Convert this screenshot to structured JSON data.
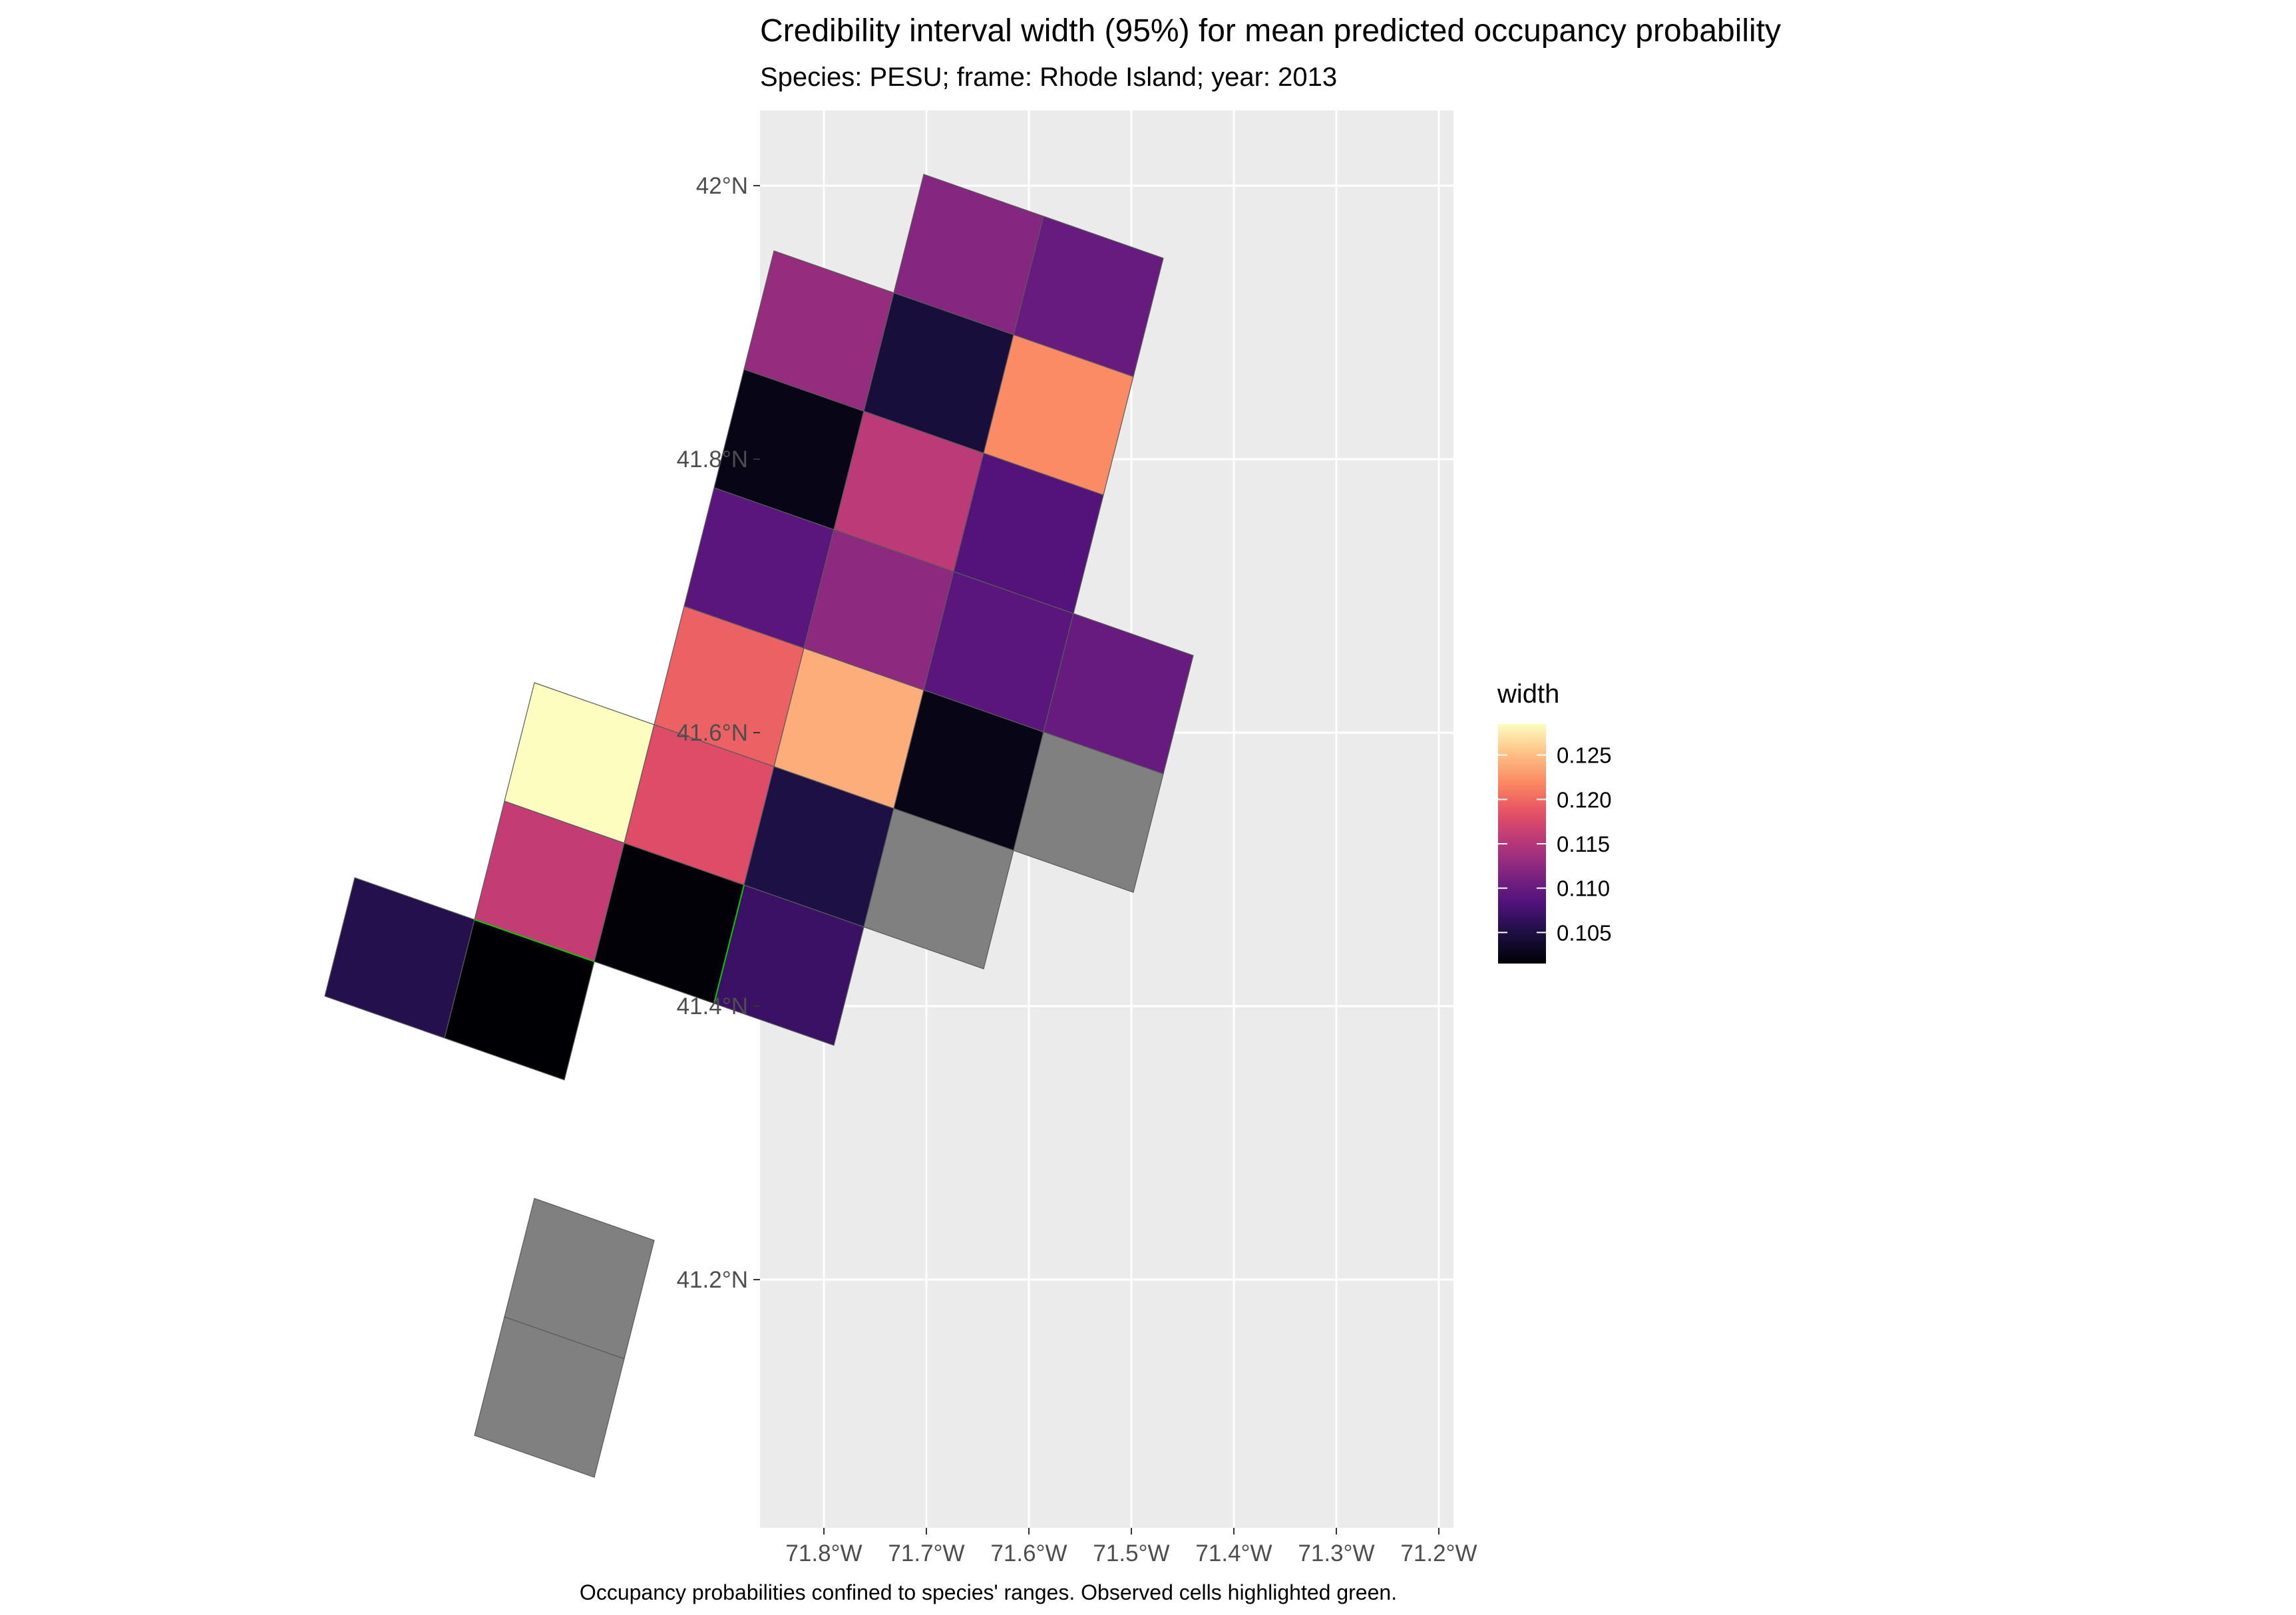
{
  "title": "Credibility interval width (95%) for mean predicted occupancy probability",
  "subtitle": "Species: PESU; frame: Rhode Island; year: 2013",
  "caption": "Occupancy probabilities confined to species' ranges. Observed cells highlighted green.",
  "axes": {
    "x_ticks": [
      "71.8°W",
      "71.7°W",
      "71.6°W",
      "71.5°W",
      "71.4°W",
      "71.3°W",
      "71.2°W"
    ],
    "y_ticks": [
      "42°N",
      "41.8°N",
      "41.6°N",
      "41.4°N",
      "41.2°N"
    ]
  },
  "legend": {
    "title": "width",
    "labels": [
      "0.125",
      "0.120",
      "0.115",
      "0.110",
      "0.105"
    ],
    "colormap": "magma",
    "na_color": "#808080",
    "panel_background": "#ebebeb",
    "observed_highlight": "#00cc00"
  },
  "map_data": {
    "value_range": [
      0.1015,
      0.1285
    ],
    "cells": [
      {
        "row": 0,
        "col": 0,
        "width": 0.112
      },
      {
        "row": 0,
        "col": 1,
        "width": 0.11
      },
      {
        "row": 1,
        "col": -1,
        "width": 0.113
      },
      {
        "row": 1,
        "col": 0,
        "width": 0.1045
      },
      {
        "row": 1,
        "col": 1,
        "width": 0.122
      },
      {
        "row": 2,
        "col": -1,
        "width": 0.1025
      },
      {
        "row": 2,
        "col": 0,
        "width": 0.1155
      },
      {
        "row": 2,
        "col": 1,
        "width": 0.1085
      },
      {
        "row": 3,
        "col": -1,
        "width": 0.109
      },
      {
        "row": 3,
        "col": 0,
        "width": 0.1125
      },
      {
        "row": 3,
        "col": 1,
        "width": 0.109
      },
      {
        "row": 3,
        "col": 2,
        "width": 0.11
      },
      {
        "row": 4,
        "col": -1,
        "width": 0.1195
      },
      {
        "row": 4,
        "col": 0,
        "width": 0.124
      },
      {
        "row": 4,
        "col": 1,
        "width": 0.1025
      },
      {
        "row": 4,
        "col": 2,
        "width": null
      },
      {
        "row": 5,
        "col": -2,
        "width": 0.1285
      },
      {
        "row": 5,
        "col": -1,
        "width": 0.118
      },
      {
        "row": 5,
        "col": 0,
        "width": 0.105
      },
      {
        "row": 5,
        "col": 1,
        "width": null
      },
      {
        "row": 6,
        "col": -2,
        "width": 0.116
      },
      {
        "row": 6,
        "col": -1,
        "width": 0.1017
      },
      {
        "row": 6,
        "col": 0,
        "width": 0.107
      },
      {
        "row": 7,
        "col": -3,
        "width": 0.1055
      },
      {
        "row": 7,
        "col": -2,
        "width": 0.1015
      },
      {
        "row": 9,
        "col": -1,
        "width": null
      },
      {
        "row": 10,
        "col": -1,
        "width": null
      }
    ],
    "observed_edges": [
      {
        "cells": [
          [
            6,
            -1
          ],
          [
            7,
            -2
          ]
        ],
        "note": "border between these cells"
      },
      {
        "cells": [
          [
            6,
            -1
          ],
          [
            6,
            0
          ]
        ],
        "note": "border between these cells"
      }
    ]
  }
}
